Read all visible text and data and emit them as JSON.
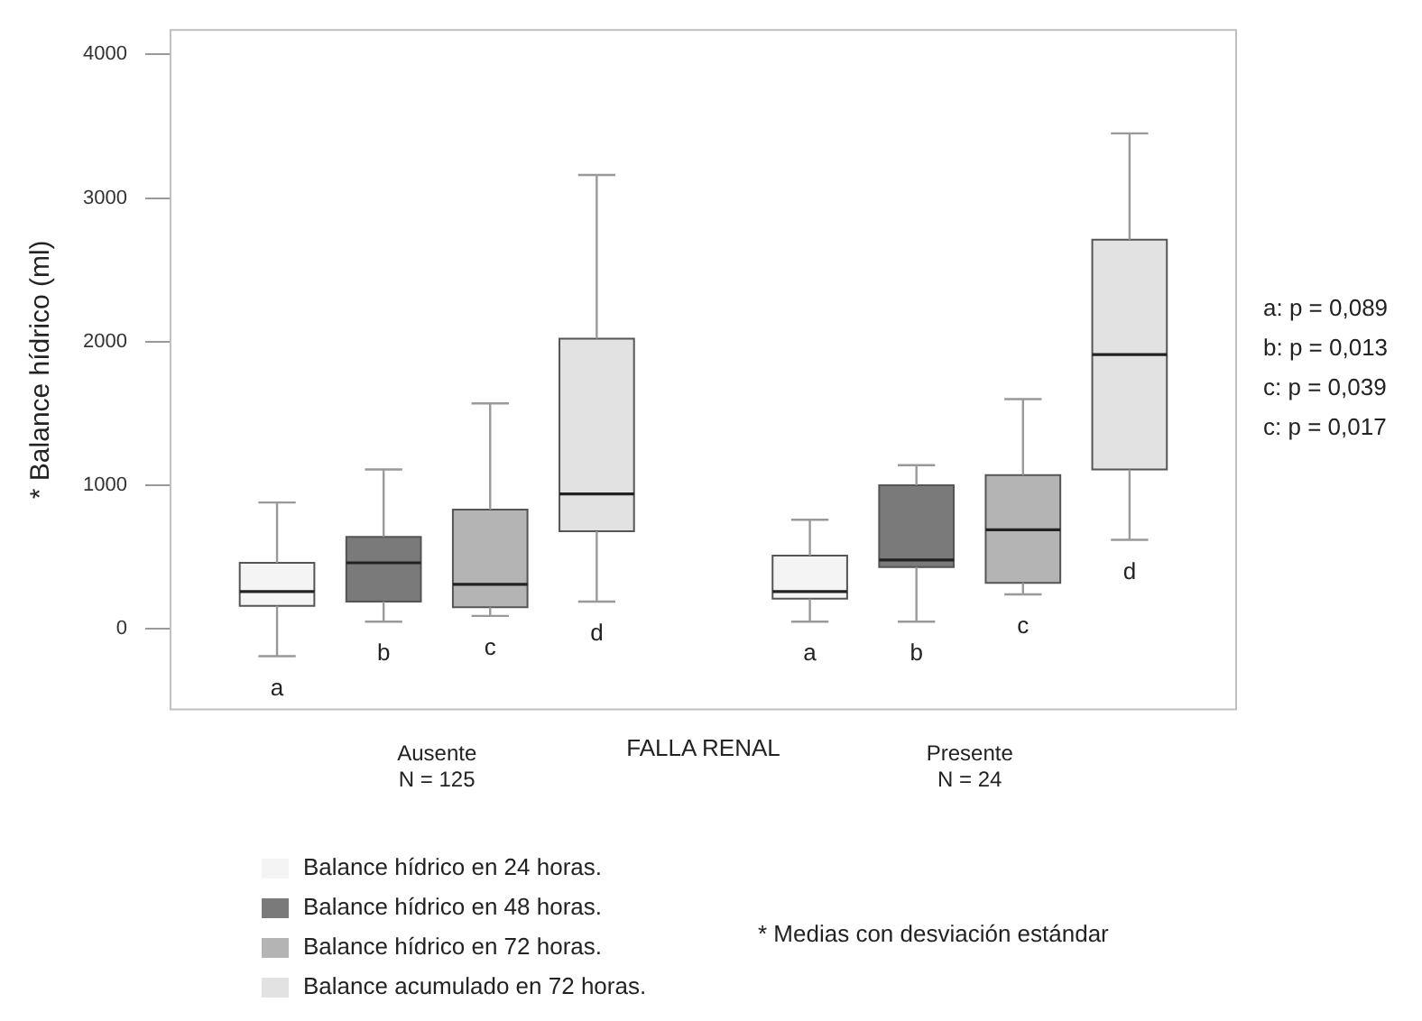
{
  "chart_data": {
    "type": "box",
    "ylabel": "* Balance hídrico (ml)",
    "xlabel": "FALLA RENAL",
    "categories": [
      "Ausente\nN = 125",
      "Presente\nN = 24"
    ],
    "ylim": [
      -560,
      4170
    ],
    "yticks": [
      0,
      1000,
      2000,
      3000,
      4000
    ],
    "grid": false,
    "legend": "bottom left",
    "series": [
      {
        "name": "Balance hídrico en 24 horas.",
        "color": "#f4f4f4",
        "boxes": [
          {
            "low": -190,
            "q1": 160,
            "median": 260,
            "q3": 460,
            "high": 880
          },
          {
            "low": 50,
            "q1": 210,
            "median": 260,
            "q3": 510,
            "high": 760
          }
        ]
      },
      {
        "name": "Balance hídrico en 48 horas.",
        "color": "#7a7a7a",
        "boxes": [
          {
            "low": 50,
            "q1": 190,
            "median": 460,
            "q3": 640,
            "high": 1110
          },
          {
            "low": 50,
            "q1": 430,
            "median": 480,
            "q3": 1000,
            "high": 1140
          }
        ]
      },
      {
        "name": "Balance hídrico en 72 horas.",
        "color": "#b4b4b4",
        "boxes": [
          {
            "low": 90,
            "q1": 150,
            "median": 310,
            "q3": 830,
            "high": 1570
          },
          {
            "low": 240,
            "q1": 320,
            "median": 690,
            "q3": 1070,
            "high": 1600
          }
        ]
      },
      {
        "name": "Balance acumulado en 72 horas.",
        "color": "#e2e2e2",
        "boxes": [
          {
            "low": 190,
            "q1": 680,
            "median": 940,
            "q3": 2020,
            "high": 3160
          },
          {
            "low": 620,
            "q1": 1110,
            "median": 1910,
            "q3": 2710,
            "high": 3450
          }
        ]
      }
    ],
    "annotations": [
      "a",
      "b",
      "c",
      "d",
      "a",
      "b",
      "c",
      "d",
      "a: p = 0,089",
      "b: p = 0,013",
      "c: p = 0,039",
      "c: p = 0,017",
      "* Medias con desviación estándar"
    ]
  }
}
